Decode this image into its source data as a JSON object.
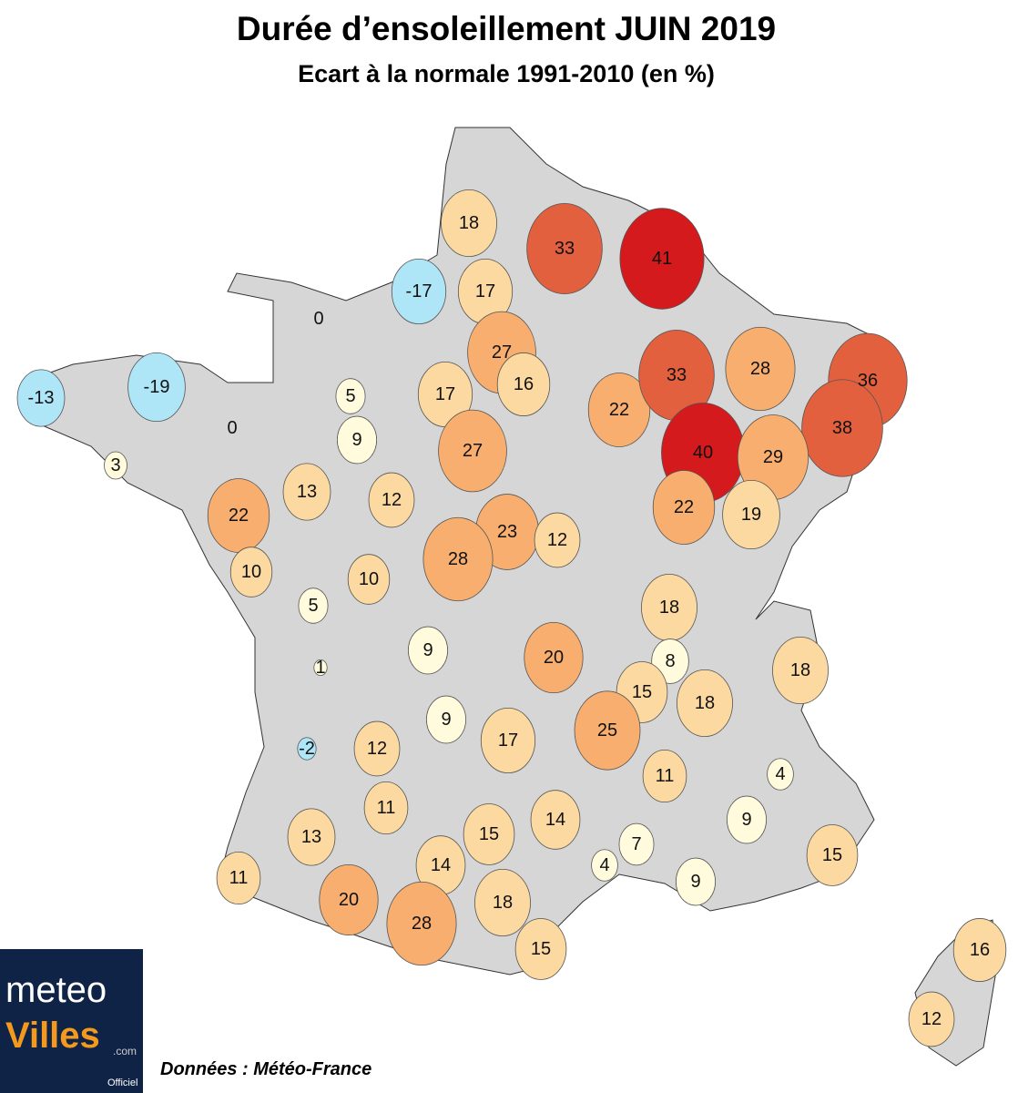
{
  "title": "Durée d’ensoleillement JUIN 2019",
  "subtitle": "Ecart à la normale 1991-2010 (en %)",
  "source": "Données : Météo-France",
  "logo": {
    "line1": "meteo",
    "line2": "Villes",
    "domain": ".com",
    "badge": "Officiel"
  },
  "stations": {
    "values": [
      18,
      33,
      41,
      -17,
      17,
      0,
      27,
      16,
      -13,
      -19,
      5,
      0,
      9,
      17,
      27,
      22,
      33,
      28,
      36,
      38,
      40,
      29,
      3,
      13,
      12,
      22,
      22,
      19,
      23,
      12,
      28,
      10,
      10,
      5,
      18,
      9,
      20,
      8,
      18,
      1,
      15,
      18,
      9,
      25,
      17,
      -2,
      12,
      11,
      4,
      11,
      14,
      13,
      15,
      9,
      7,
      14,
      4,
      15,
      11,
      9,
      20,
      18,
      28,
      15,
      16,
      12
    ]
  }
}
